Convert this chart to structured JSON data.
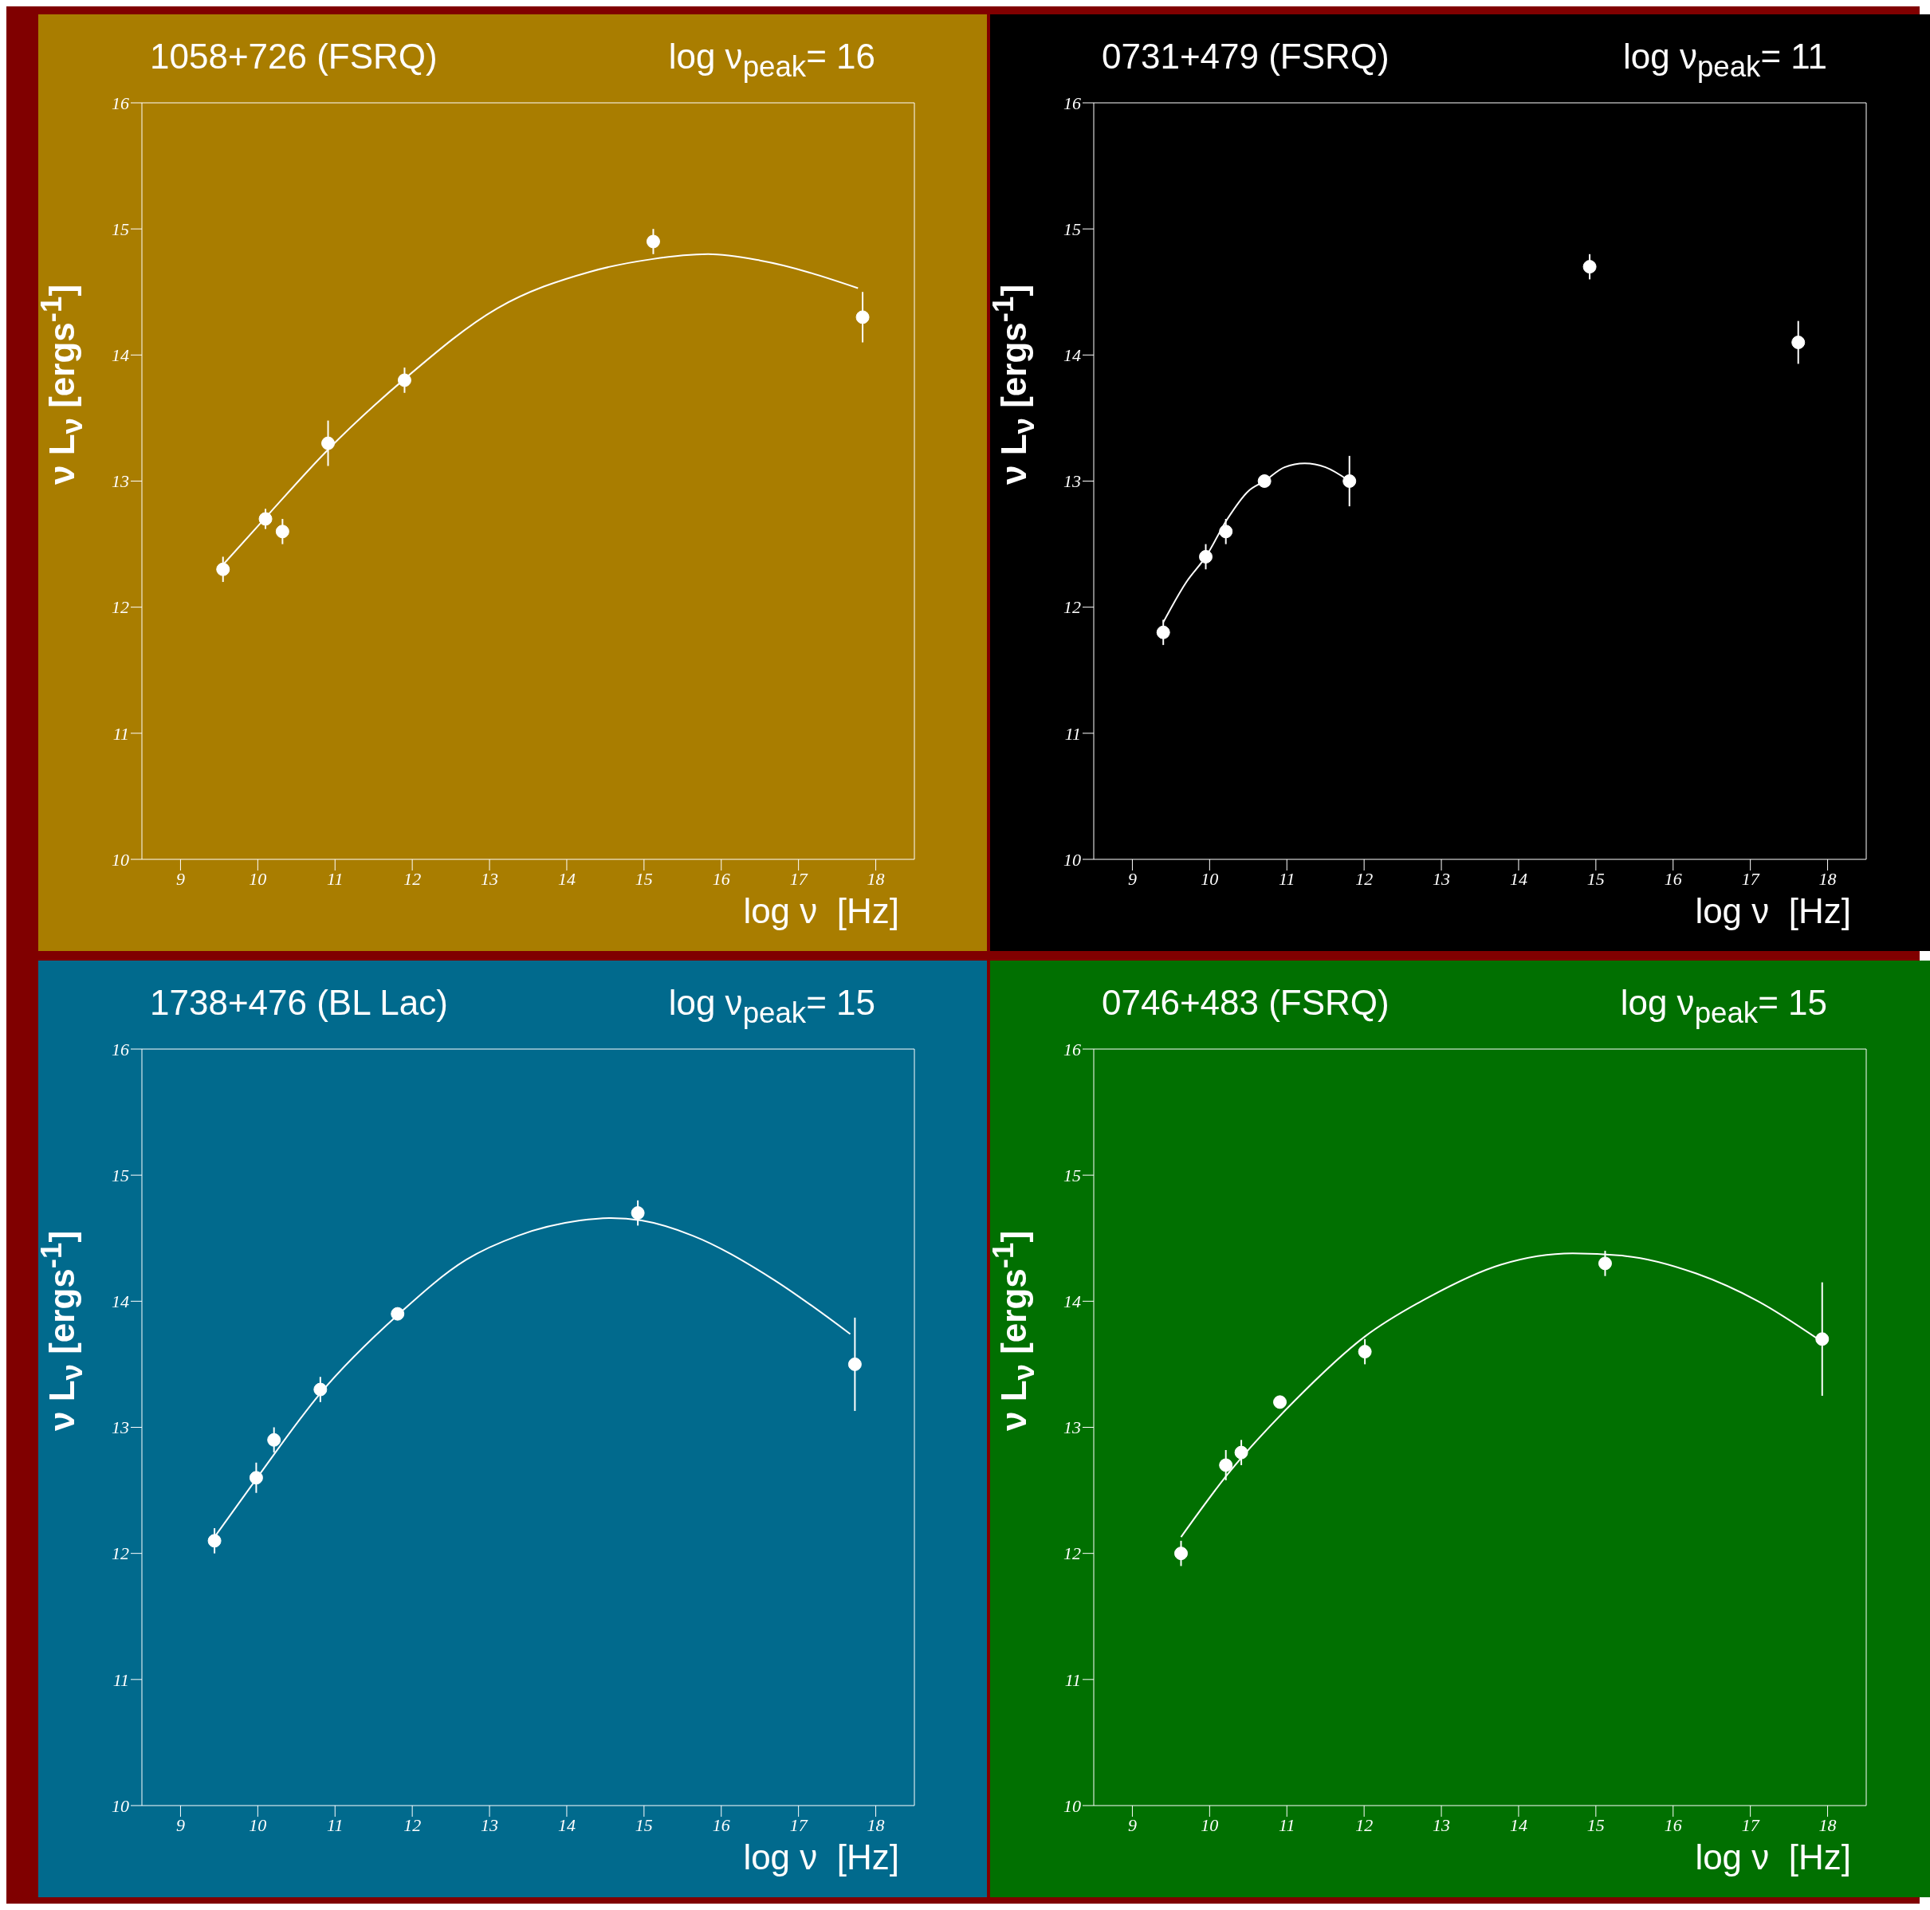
{
  "chart_data": [
    {
      "type": "scatter",
      "title": "1058+726 (FSRQ)",
      "subtitle": "log ν$_{peak}$= 16",
      "xlabel": "log ν  [Hz]",
      "ylabel": "ν L$_{ν}$ [ergs$^{-1}$]",
      "xlim": [
        8.5,
        18.5
      ],
      "xticks": [
        9,
        10,
        11,
        12,
        13,
        14,
        15,
        16,
        17,
        18
      ],
      "ylim": [
        10,
        16
      ],
      "yticks": [
        10,
        11,
        12,
        13,
        14,
        15,
        16
      ],
      "series": [
        {
          "marker": "circle",
          "color": "#ffffff",
          "x": [
            9.55,
            10.1,
            10.32,
            10.91,
            11.9,
            15.12,
            17.83
          ],
          "values": [
            12.3,
            12.7,
            12.6,
            13.3,
            13.8,
            14.9,
            14.3
          ],
          "errors": [
            0.1,
            0.08,
            0.1,
            0.18,
            0.1,
            0.1,
            0.2
          ]
        },
        {
          "type": "line",
          "color": "#ffffff",
          "line_style": "solid",
          "x": [
            9.57,
            10.1,
            10.91,
            11.9,
            13.1,
            14.3,
            15.1,
            15.83,
            16.5,
            17.77
          ],
          "values": [
            12.35,
            12.71,
            13.25,
            13.81,
            14.37,
            14.66,
            14.76,
            14.8,
            14.75,
            14.53
          ]
        }
      ]
    },
    {
      "type": "scatter",
      "title": "0731+479 (FSRQ)",
      "subtitle": "log ν$_{peak}$= 11",
      "xlabel": "log ν  [Hz]",
      "ylabel": "ν L$_{ν}$ [ergs$^{-1}$]",
      "xlim": [
        8.5,
        18.5
      ],
      "xticks": [
        9,
        10,
        11,
        12,
        13,
        14,
        15,
        16,
        17,
        18
      ],
      "ylim": [
        10,
        16
      ],
      "yticks": [
        10,
        11,
        12,
        13,
        14,
        15,
        16
      ],
      "series": [
        {
          "marker": "circle",
          "color": "#ffffff",
          "x": [
            9.4,
            9.95,
            10.21,
            10.71,
            11.81,
            14.92,
            17.62
          ],
          "values": [
            11.8,
            12.4,
            12.6,
            13.0,
            13.0,
            14.7,
            14.1
          ],
          "errors": [
            0.1,
            0.1,
            0.1,
            0.05,
            0.2,
            0.1,
            0.17
          ]
        },
        {
          "type": "line",
          "color": "#ffffff",
          "line_style": "solid",
          "x": [
            9.4,
            9.7,
            9.95,
            10.23,
            10.5,
            10.71,
            10.97,
            11.23,
            11.5,
            11.81
          ],
          "values": [
            11.88,
            12.2,
            12.4,
            12.7,
            12.92,
            13.0,
            13.11,
            13.14,
            13.11,
            13.0
          ]
        }
      ]
    },
    {
      "type": "scatter",
      "title": "1738+476 (BL Lac)",
      "subtitle": "log ν$_{peak}$= 15",
      "xlabel": "log ν  [Hz]",
      "ylabel": "ν L$_{ν}$ [ergs$^{-1}$]",
      "xlim": [
        8.5,
        18.5
      ],
      "xticks": [
        9,
        10,
        11,
        12,
        13,
        14,
        15,
        16,
        17,
        18
      ],
      "ylim": [
        10,
        16
      ],
      "yticks": [
        10,
        11,
        12,
        13,
        14,
        15,
        16
      ],
      "series": [
        {
          "marker": "circle",
          "color": "#ffffff",
          "x": [
            9.44,
            9.98,
            10.21,
            10.81,
            11.81,
            14.92,
            17.73
          ],
          "values": [
            12.1,
            12.6,
            12.9,
            13.3,
            13.9,
            14.7,
            13.5
          ],
          "errors": [
            0.1,
            0.12,
            0.1,
            0.1,
            0.05,
            0.1,
            0.37
          ]
        },
        {
          "type": "line",
          "color": "#ffffff",
          "line_style": "solid",
          "x": [
            9.44,
            9.98,
            10.81,
            11.81,
            12.7,
            13.37,
            14.17,
            14.57,
            14.97,
            15.63,
            16.63,
            17.67
          ],
          "values": [
            12.13,
            12.59,
            13.27,
            13.89,
            14.33,
            14.52,
            14.64,
            14.66,
            14.64,
            14.52,
            14.19,
            13.74
          ]
        }
      ]
    },
    {
      "type": "scatter",
      "title": "0746+483 (FSRQ)",
      "subtitle": "log ν$_{peak}$= 15",
      "xlabel": "log ν  [Hz]",
      "ylabel": "ν L$_{ν}$ [ergs$^{-1}$]",
      "xlim": [
        8.5,
        18.5
      ],
      "xticks": [
        9,
        10,
        11,
        12,
        13,
        14,
        15,
        16,
        17,
        18
      ],
      "ylim": [
        10,
        16
      ],
      "yticks": [
        10,
        11,
        12,
        13,
        14,
        15,
        16
      ],
      "series": [
        {
          "marker": "circle",
          "color": "#ffffff",
          "x": [
            9.63,
            10.21,
            10.41,
            10.91,
            12.01,
            15.12,
            17.93
          ],
          "values": [
            12.0,
            12.7,
            12.8,
            13.2,
            13.6,
            14.3,
            13.7
          ],
          "errors": [
            0.1,
            0.12,
            0.1,
            0.05,
            0.1,
            0.1,
            0.45
          ]
        },
        {
          "type": "line",
          "color": "#ffffff",
          "line_style": "solid",
          "x": [
            9.63,
            10.21,
            11.1,
            12.01,
            12.83,
            13.77,
            14.7,
            15.37,
            16.3,
            17.1,
            17.9
          ],
          "values": [
            12.13,
            12.61,
            13.21,
            13.72,
            14.03,
            14.29,
            14.38,
            14.36,
            14.22,
            14.0,
            13.69
          ]
        }
      ]
    }
  ]
}
